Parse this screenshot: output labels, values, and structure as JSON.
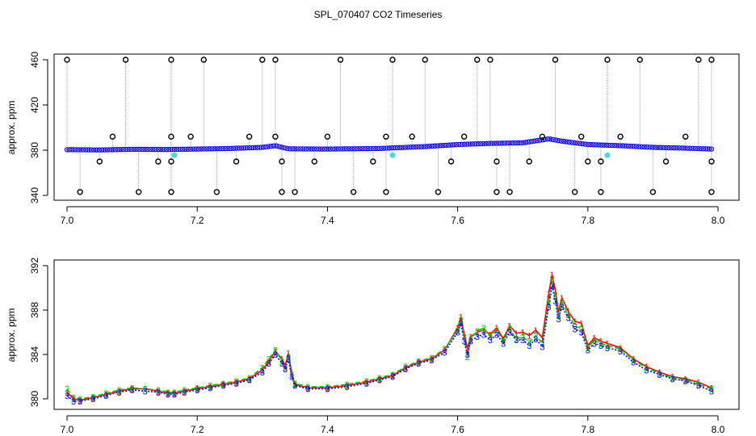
{
  "figure_title": "SPL_070407  CO2 Timeseries",
  "colors": {
    "series1": "#ff0000",
    "series2": "#00cc00",
    "series3": "#0000ff",
    "outlier": "#000000",
    "flagged": "#44dddd",
    "spike_line": "#999999",
    "axis": "#000000"
  },
  "chart_data": [
    {
      "type": "scatter",
      "title": "",
      "ylabel": "approx. ppm",
      "xlabel": "",
      "xlim": [
        7.0,
        8.0
      ],
      "ylim": [
        340,
        460
      ],
      "xticks": [
        "7.0",
        "7.2",
        "7.4",
        "7.6",
        "7.8",
        "8.0"
      ],
      "yticks": [
        "340",
        "380",
        "420",
        "460"
      ],
      "grid": false,
      "baseline": {
        "x": [
          7.0,
          7.05,
          7.1,
          7.15,
          7.2,
          7.25,
          7.3,
          7.32,
          7.34,
          7.4,
          7.48,
          7.5,
          7.55,
          7.6,
          7.65,
          7.7,
          7.74,
          7.76,
          7.8,
          7.85,
          7.9,
          7.95,
          7.99
        ],
        "y": [
          380.5,
          380.2,
          380.8,
          380.6,
          381.0,
          381.5,
          382.5,
          384.0,
          381.2,
          381.0,
          381.5,
          382.0,
          383.2,
          385.0,
          386.0,
          386.5,
          390.0,
          388.0,
          385.0,
          384.0,
          382.5,
          381.8,
          381.0
        ]
      },
      "outliers_high": {
        "x": [
          7.0,
          7.09,
          7.16,
          7.21,
          7.3,
          7.32,
          7.42,
          7.5,
          7.55,
          7.63,
          7.65,
          7.75,
          7.83,
          7.88,
          7.97,
          7.99
        ],
        "y": 460
      },
      "outliers_low": {
        "x": [
          7.02,
          7.11,
          7.16,
          7.23,
          7.33,
          7.35,
          7.44,
          7.49,
          7.57,
          7.66,
          7.68,
          7.78,
          7.82,
          7.9,
          7.99
        ],
        "y": 343
      },
      "outliers_mid_high": {
        "x": [
          7.07,
          7.16,
          7.19,
          7.28,
          7.32,
          7.4,
          7.49,
          7.53,
          7.61,
          7.73,
          7.79,
          7.85,
          7.95
        ],
        "y": 392
      },
      "outliers_mid_low": {
        "x": [
          7.05,
          7.14,
          7.16,
          7.26,
          7.33,
          7.38,
          7.47,
          7.59,
          7.66,
          7.71,
          7.8,
          7.82,
          7.92,
          7.99
        ],
        "y": 370
      },
      "flagged": {
        "x": [
          7.165,
          7.5,
          7.83
        ],
        "y": [
          375.5,
          375.5,
          375.5
        ]
      }
    },
    {
      "type": "line",
      "title": "",
      "ylabel": "approx. ppm",
      "xlabel": "",
      "xlim": [
        7.0,
        8.0
      ],
      "ylim": [
        379.5,
        392
      ],
      "xticks": [
        "7.0",
        "7.2",
        "7.4",
        "7.6",
        "7.8",
        "8.0"
      ],
      "yticks": [
        "380",
        "384",
        "388",
        "392"
      ],
      "grid": false,
      "series_markers": [
        "1",
        "2",
        "3"
      ],
      "x": [
        7.0,
        7.01,
        7.02,
        7.04,
        7.06,
        7.08,
        7.1,
        7.12,
        7.14,
        7.155,
        7.165,
        7.18,
        7.2,
        7.22,
        7.24,
        7.26,
        7.28,
        7.3,
        7.31,
        7.32,
        7.33,
        7.335,
        7.34,
        7.345,
        7.35,
        7.37,
        7.4,
        7.43,
        7.46,
        7.48,
        7.5,
        7.52,
        7.54,
        7.56,
        7.58,
        7.6,
        7.605,
        7.61,
        7.615,
        7.62,
        7.63,
        7.64,
        7.65,
        7.66,
        7.67,
        7.68,
        7.69,
        7.7,
        7.71,
        7.72,
        7.73,
        7.74,
        7.745,
        7.75,
        7.755,
        7.76,
        7.77,
        7.78,
        7.79,
        7.8,
        7.81,
        7.82,
        7.83,
        7.85,
        7.87,
        7.89,
        7.91,
        7.93,
        7.95,
        7.97,
        7.99
      ],
      "series": [
        {
          "values": [
            380.6,
            380.0,
            379.9,
            380.1,
            380.4,
            380.7,
            380.9,
            380.9,
            380.7,
            380.5,
            380.5,
            380.7,
            380.9,
            381.1,
            381.3,
            381.5,
            381.8,
            382.6,
            383.4,
            384.3,
            383.6,
            383.0,
            384.1,
            382.4,
            381.3,
            381.0,
            381.0,
            381.2,
            381.5,
            381.8,
            382.1,
            382.8,
            383.3,
            383.6,
            384.4,
            386.4,
            387.4,
            385.8,
            384.6,
            385.6,
            386.0,
            386.2,
            385.8,
            386.4,
            385.4,
            386.6,
            385.9,
            386.0,
            385.7,
            386.2,
            385.5,
            389.5,
            391.2,
            389.8,
            387.8,
            389.1,
            387.9,
            387.0,
            386.8,
            384.8,
            385.5,
            385.2,
            385.0,
            384.6,
            383.6,
            382.9,
            382.4,
            382.0,
            381.8,
            381.5,
            381.0
          ]
        },
        {
          "values": [
            380.9,
            380.1,
            380.0,
            380.2,
            380.5,
            380.8,
            381.0,
            380.9,
            380.8,
            380.6,
            380.6,
            380.8,
            381.0,
            381.2,
            381.4,
            381.6,
            381.9,
            382.8,
            383.6,
            384.4,
            383.4,
            382.8,
            383.8,
            382.2,
            381.4,
            381.1,
            381.1,
            381.3,
            381.6,
            381.9,
            382.2,
            382.9,
            383.4,
            383.7,
            384.5,
            386.2,
            387.1,
            385.6,
            383.8,
            385.4,
            386.1,
            386.4,
            385.6,
            386.2,
            385.2,
            386.3,
            385.4,
            385.6,
            385.1,
            385.7,
            385.0,
            388.7,
            390.6,
            389.3,
            387.5,
            388.7,
            387.6,
            386.6,
            386.3,
            384.6,
            385.3,
            385.0,
            384.8,
            384.5,
            383.5,
            382.8,
            382.3,
            381.9,
            381.7,
            381.3,
            380.9
          ]
        },
        {
          "values": [
            380.3,
            379.8,
            379.8,
            380.0,
            380.3,
            380.6,
            380.8,
            380.7,
            380.6,
            380.4,
            380.4,
            380.6,
            380.8,
            381.0,
            381.2,
            381.4,
            381.7,
            382.4,
            383.2,
            384.0,
            383.2,
            382.7,
            383.6,
            382.0,
            381.2,
            380.9,
            380.9,
            381.1,
            381.4,
            381.7,
            382.0,
            382.7,
            383.2,
            383.5,
            384.2,
            386.0,
            386.8,
            385.2,
            384.0,
            385.2,
            385.6,
            385.8,
            385.3,
            385.8,
            385.0,
            386.0,
            385.3,
            385.3,
            384.8,
            385.4,
            384.7,
            388.3,
            390.2,
            388.8,
            387.2,
            388.3,
            387.3,
            386.3,
            386.0,
            384.4,
            385.0,
            384.8,
            384.6,
            384.3,
            383.3,
            382.6,
            382.2,
            381.8,
            381.6,
            381.2,
            380.7
          ]
        }
      ]
    }
  ]
}
